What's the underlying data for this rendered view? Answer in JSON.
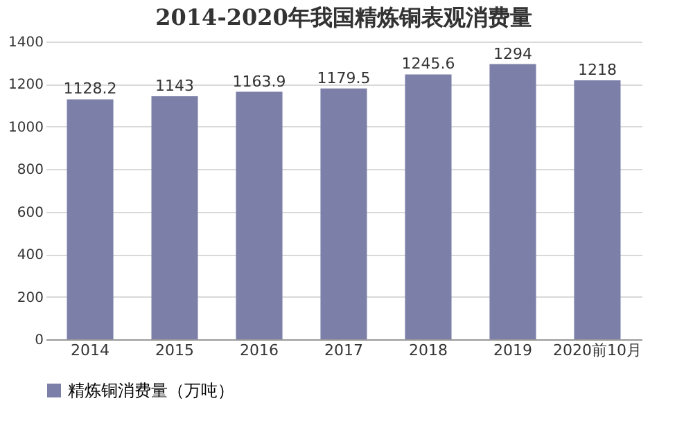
{
  "chart_data": {
    "type": "bar",
    "title": "2014-2020年我国精炼铜表观消费量",
    "categories": [
      "2014",
      "2015",
      "2016",
      "2017",
      "2018",
      "2019",
      "2020前10月"
    ],
    "series": [
      {
        "name": "精炼铜消费量（万吨）",
        "color": "#7c80a8",
        "values": [
          1128.2,
          1143,
          1163.9,
          1179.5,
          1245.6,
          1294,
          1218
        ]
      }
    ],
    "ylim": [
      0,
      1400
    ],
    "yticks": [
      0,
      200,
      400,
      600,
      800,
      1000,
      1200,
      1400
    ],
    "grid": "y",
    "legend": "bottom",
    "data_labels": true
  }
}
